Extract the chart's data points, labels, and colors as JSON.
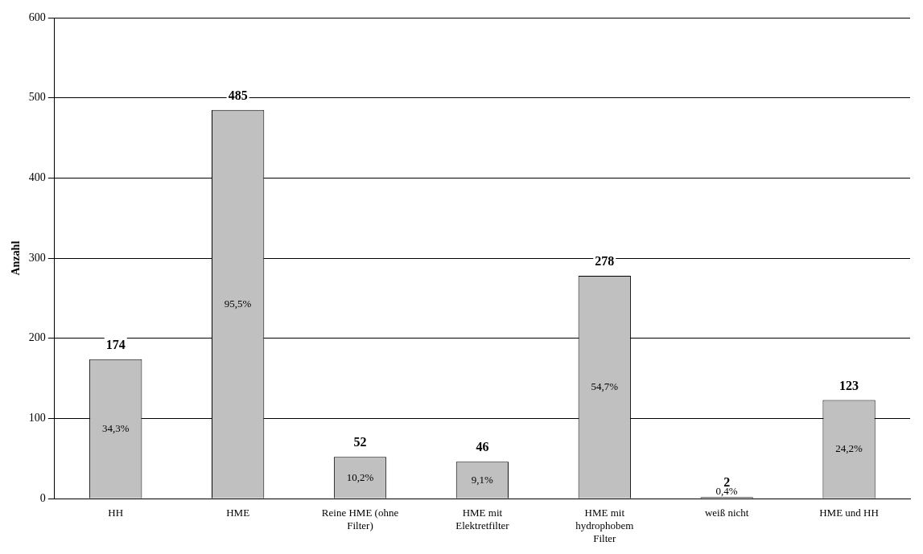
{
  "chart_data": {
    "type": "bar",
    "ylabel": "Anzahl",
    "categories": [
      "HH",
      "HME",
      "Reine HME (ohne Filter)",
      "HME mit Elektretfilter",
      "HME mit hydrophobem Filter",
      "weiß nicht",
      "HME und HH"
    ],
    "values": [
      174,
      485,
      52,
      46,
      278,
      2,
      123
    ],
    "color": "#c0c0c0",
    "ylim": [
      0,
      600
    ],
    "yticks": [
      0,
      100,
      200,
      300,
      400,
      500,
      600
    ],
    "grid": "y",
    "legend": false,
    "data_labels": true,
    "annotations": [
      "34,3%",
      "95,5%",
      "10,2%",
      "9,1%",
      "54,7%",
      "0,4%",
      "24,2%"
    ]
  }
}
